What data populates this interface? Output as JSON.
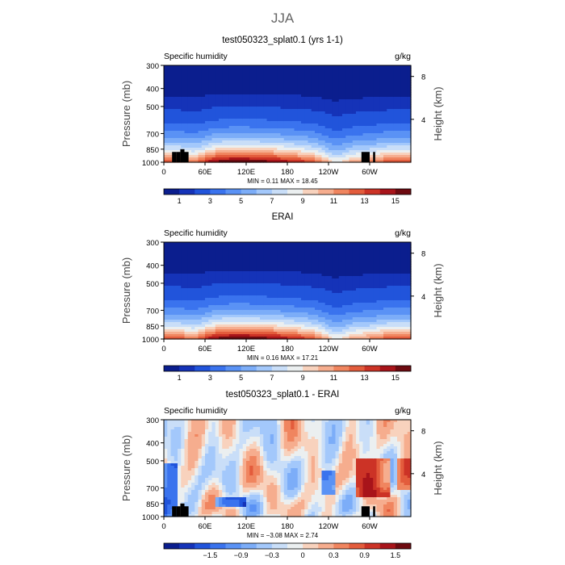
{
  "figure": {
    "title": "JJA"
  },
  "chart_data": [
    {
      "type": "heatmap",
      "title": "test050323_splat0.1 (yrs 1-1)",
      "variable_label": "Specific humidity",
      "units_label": "g/kg",
      "ylabel": "Pressure (mb)",
      "ylabel_right": "Height (km)",
      "yticks": [
        "300",
        "400",
        "500",
        "700",
        "850",
        "1000"
      ],
      "yticks_values": [
        300,
        400,
        500,
        700,
        850,
        1000
      ],
      "yticks_right": [
        "8",
        "4"
      ],
      "yticks_right_values": [
        8,
        4
      ],
      "xticks": [
        "0",
        "60E",
        "120E",
        "180",
        "120W",
        "60W"
      ],
      "xticks_values": [
        0,
        60,
        120,
        180,
        240,
        300
      ],
      "xlim": [
        0,
        360
      ],
      "ylim": [
        1000,
        300
      ],
      "stats_text": "MIN =    0.11   MAX =   18.45",
      "min": 0.11,
      "max": 18.45,
      "field": "humidity",
      "terrain": true,
      "colorbar": {
        "colors": [
          "#0b1e8e",
          "#1533b8",
          "#2154db",
          "#3a73ee",
          "#5a92f5",
          "#7cadf8",
          "#a3c8fb",
          "#c9def8",
          "#ebeff0",
          "#f8d2bd",
          "#f6ad8e",
          "#f0855f",
          "#e35c3c",
          "#cc3326",
          "#a8141a",
          "#6e0a10"
        ],
        "labels": [
          "1",
          "3",
          "5",
          "7",
          "9",
          "11",
          "13",
          "15"
        ]
      }
    },
    {
      "type": "heatmap",
      "title": "ERAI",
      "variable_label": "Specific humidity",
      "units_label": "g/kg",
      "ylabel": "Pressure (mb)",
      "ylabel_right": "Height (km)",
      "yticks": [
        "300",
        "400",
        "500",
        "700",
        "850",
        "1000"
      ],
      "yticks_values": [
        300,
        400,
        500,
        700,
        850,
        1000
      ],
      "yticks_right": [
        "8",
        "4"
      ],
      "yticks_right_values": [
        8,
        4
      ],
      "xticks": [
        "0",
        "60E",
        "120E",
        "180",
        "120W",
        "60W"
      ],
      "xticks_values": [
        0,
        60,
        120,
        180,
        240,
        300
      ],
      "xlim": [
        0,
        360
      ],
      "ylim": [
        1000,
        300
      ],
      "stats_text": "MIN =    0.16   MAX =   17.21",
      "min": 0.16,
      "max": 17.21,
      "field": "humidity",
      "terrain": false,
      "colorbar": {
        "colors": [
          "#0b1e8e",
          "#1533b8",
          "#2154db",
          "#3a73ee",
          "#5a92f5",
          "#7cadf8",
          "#a3c8fb",
          "#c9def8",
          "#ebeff0",
          "#f8d2bd",
          "#f6ad8e",
          "#f0855f",
          "#e35c3c",
          "#cc3326",
          "#a8141a",
          "#6e0a10"
        ],
        "labels": [
          "1",
          "3",
          "5",
          "7",
          "9",
          "11",
          "13",
          "15"
        ]
      }
    },
    {
      "type": "heatmap",
      "title": "test050323_splat0.1 - ERAI",
      "variable_label": "Specific humidity",
      "units_label": "g/kg",
      "ylabel": "Pressure (mb)",
      "ylabel_right": "Height (km)",
      "yticks": [
        "300",
        "400",
        "500",
        "700",
        "850",
        "1000"
      ],
      "yticks_values": [
        300,
        400,
        500,
        700,
        850,
        1000
      ],
      "yticks_right": [
        "8",
        "4"
      ],
      "yticks_right_values": [
        8,
        4
      ],
      "xticks": [
        "0",
        "60E",
        "120E",
        "180",
        "120W",
        "60W"
      ],
      "xticks_values": [
        0,
        60,
        120,
        180,
        240,
        300
      ],
      "xlim": [
        0,
        360
      ],
      "ylim": [
        1000,
        300
      ],
      "stats_text": "MIN =   −3.08   MAX =    2.74",
      "min": -3.08,
      "max": 2.74,
      "field": "difference",
      "terrain": true,
      "colorbar": {
        "colors": [
          "#0b1e8e",
          "#1533b8",
          "#2154db",
          "#3a73ee",
          "#5a92f5",
          "#7cadf8",
          "#a3c8fb",
          "#c9def8",
          "#ebeff0",
          "#f8d2bd",
          "#f6ad8e",
          "#f0855f",
          "#e35c3c",
          "#cc3326",
          "#a8141a",
          "#6e0a10"
        ],
        "labels": [
          "−1.5",
          "−0.9",
          "−0.3",
          "0",
          "0.3",
          "0.9",
          "1.5"
        ]
      }
    }
  ]
}
